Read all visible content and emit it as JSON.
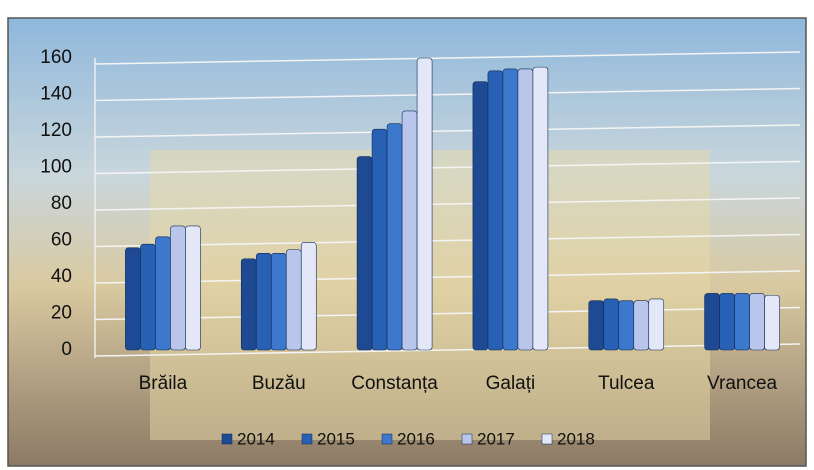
{
  "chart_data": {
    "type": "bar",
    "categories": [
      "Brăila",
      "Buzău",
      "Constanța",
      "Galați",
      "Tulcea",
      "Vrancea"
    ],
    "series": [
      {
        "name": "2014",
        "color": "#1d4a92",
        "values": [
          56,
          50,
          106,
          147,
          27,
          31
        ]
      },
      {
        "name": "2015",
        "color": "#2860b4",
        "values": [
          58,
          53,
          121,
          153,
          28,
          31
        ]
      },
      {
        "name": "2016",
        "color": "#3c78cc",
        "values": [
          62,
          53,
          124,
          154,
          27,
          31
        ]
      },
      {
        "name": "2017",
        "color": "#b9c5ea",
        "values": [
          68,
          55,
          131,
          154,
          27,
          31
        ]
      },
      {
        "name": "2018",
        "color": "#e4e7f8",
        "values": [
          68,
          59,
          160,
          155,
          28,
          30
        ]
      }
    ],
    "ylim": [
      0,
      160
    ],
    "yticks": [
      0,
      20,
      40,
      60,
      80,
      100,
      120,
      140,
      160
    ],
    "grid": true
  }
}
